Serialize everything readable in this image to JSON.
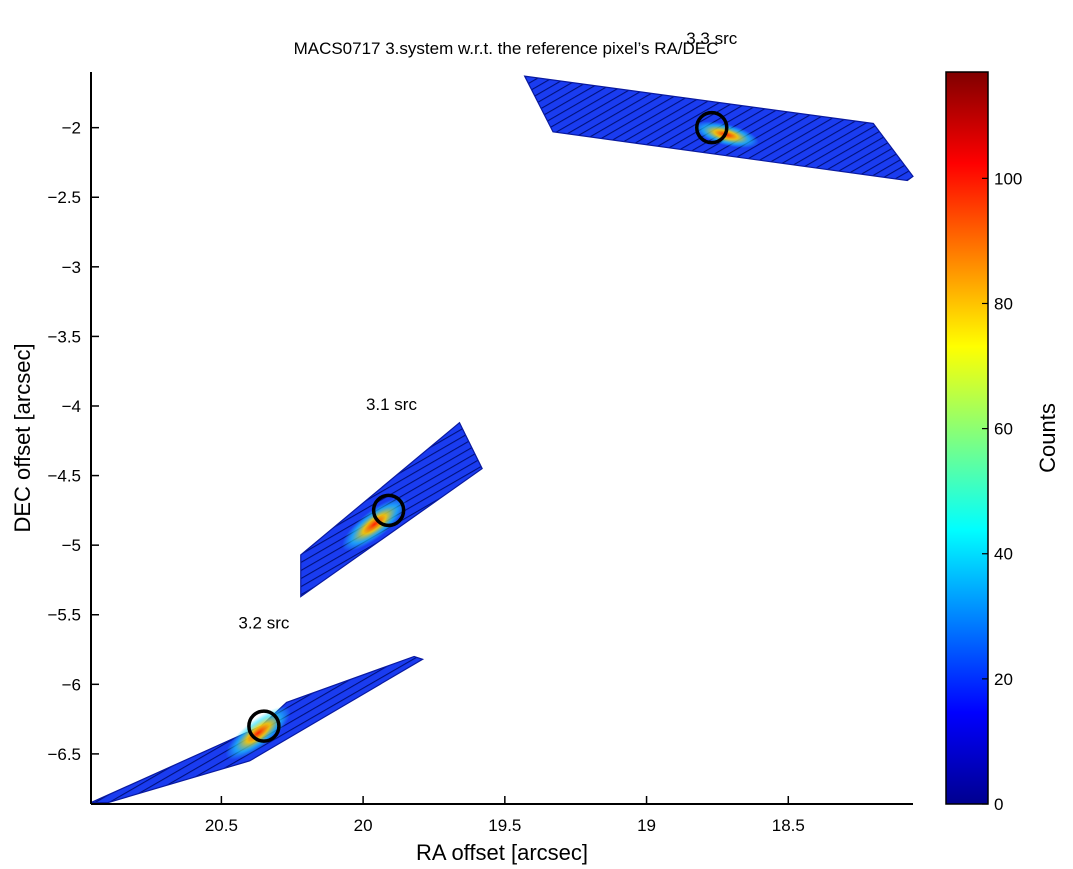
{
  "chart_data": {
    "type": "scatter",
    "title": "MACS0717  3.system w.r.t. the reference pixel’s RA/DEC",
    "xlabel": "RA offset [arcsec]",
    "ylabel": "DEC offset [arcsec]",
    "xlim": [
      20.96,
      18.06
    ],
    "ylim": [
      -6.86,
      -1.6
    ],
    "x_reversed": true,
    "x_ticks": [
      20.5,
      20,
      19.5,
      19,
      18.5
    ],
    "x_tick_labels": [
      "20.5",
      "20",
      "19.5",
      "19",
      "18.5"
    ],
    "y_ticks": [
      -2,
      -2.5,
      -3,
      -3.5,
      -4,
      -4.5,
      -5,
      -5.5,
      -6,
      -6.5
    ],
    "y_tick_labels": [
      "−2",
      "−2.5",
      "−3",
      "−3.5",
      "−4",
      "−4.5",
      "−5",
      "−5.5",
      "−6",
      "−6.5"
    ],
    "colorbar": {
      "label": "Counts",
      "range": [
        0,
        117
      ],
      "ticks": [
        0,
        20,
        40,
        60,
        80,
        100
      ],
      "tick_labels": [
        "0",
        "20",
        "40",
        "60",
        "80",
        "100"
      ],
      "colormap": "jet"
    },
    "regions": [
      {
        "label": "3.3 src",
        "label_pos": [
          18.77,
          -1.4
        ],
        "polygon": [
          [
            19.43,
            -1.63
          ],
          [
            19.33,
            -2.03
          ],
          [
            18.08,
            -2.38
          ],
          [
            18.06,
            -2.35
          ],
          [
            18.2,
            -1.97
          ]
        ],
        "circle_center": [
          18.77,
          -2.0
        ],
        "hotspot": [
          18.72,
          -2.05
        ],
        "peak_counts": 80
      },
      {
        "label": "3.1 src",
        "label_pos": [
          19.9,
          -4.03
        ],
        "polygon": [
          [
            20.22,
            -5.07
          ],
          [
            20.22,
            -5.37
          ],
          [
            19.58,
            -4.45
          ],
          [
            19.66,
            -4.12
          ]
        ],
        "circle_center": [
          19.91,
          -4.75
        ],
        "hotspot": [
          19.96,
          -4.85
        ],
        "peak_counts": 110
      },
      {
        "label": "3.2 src",
        "label_pos": [
          20.35,
          -5.6
        ],
        "polygon": [
          [
            20.96,
            -6.85
          ],
          [
            20.36,
            -6.3
          ],
          [
            20.27,
            -6.13
          ],
          [
            19.82,
            -5.8
          ],
          [
            19.79,
            -5.82
          ],
          [
            20.4,
            -6.55
          ],
          [
            20.9,
            -6.85
          ]
        ],
        "circle_center": [
          20.35,
          -6.3
        ],
        "hotspot": [
          20.37,
          -6.35
        ],
        "peak_counts": 100
      }
    ],
    "grid": false
  }
}
